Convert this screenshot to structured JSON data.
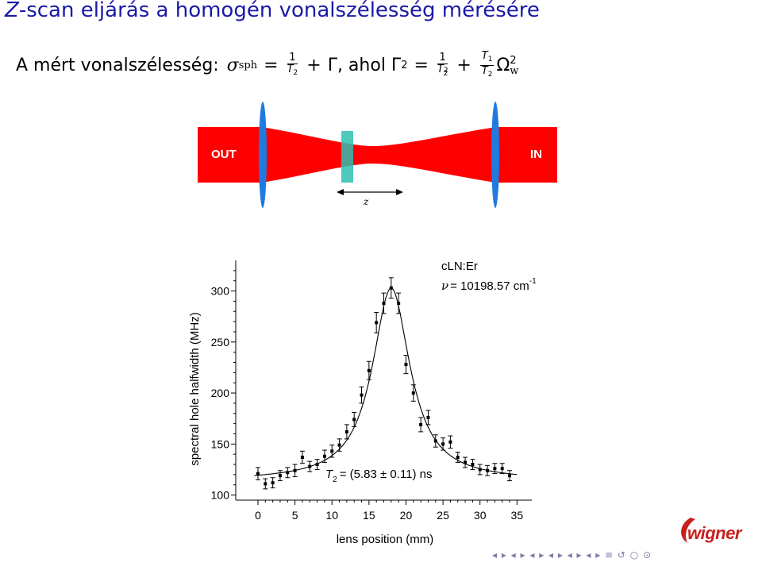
{
  "slide": {
    "title_var": "Z",
    "title_rest": "-scan eljárás a homogén vonalszélesség mérésére",
    "line_prefix": "A mért vonalszélesség:",
    "sigma": "σ",
    "sigma_sub": "sph",
    "eq": "=",
    "plus": "+",
    "gamma_text": "Γ, ahol Γ",
    "sq": "2",
    "one": "1",
    "T": "T",
    "T2_sub": "2",
    "T1_sub": "1",
    "omega": "Ω",
    "omega_sub": "w",
    "nav_symbols": "◂ ▸ ◂ ▸ ◂ ▸ ◂ ▸ ◂ ▸ ◂ ▸ ≡ ↺ ○ ⊙"
  },
  "diagram": {
    "out_label": "OUT",
    "in_label": "IN",
    "z_label": "z",
    "beam_color": "#ff0000",
    "lens_color": "#1f7be0",
    "sample_color": "#2fbfb0"
  },
  "logo": {
    "text": "wigner",
    "color": "#c8201e"
  },
  "chart_data": {
    "type": "scatter",
    "xlabel": "lens position (mm)",
    "ylabel": "spectral hole halfwidth (MHz)",
    "xlim": [
      -3,
      37
    ],
    "ylim": [
      95,
      330
    ],
    "xticks": [
      0,
      5,
      10,
      15,
      20,
      25,
      30,
      35
    ],
    "yticks": [
      100,
      150,
      200,
      250,
      300
    ],
    "annotation_sample": "cLN:Er",
    "annotation_nu_symbol": "ν",
    "annotation_nu_value": "= 10198.57 cm",
    "annotation_nu_exp": "-1",
    "annotation_T2_symbol": "T",
    "annotation_T2_sub": "2",
    "annotation_T2_value": "= (5.83 ± 0.11) ns",
    "points": [
      {
        "x": 0,
        "y": 121,
        "err": 6
      },
      {
        "x": 1,
        "y": 111,
        "err": 5
      },
      {
        "x": 2,
        "y": 112,
        "err": 5
      },
      {
        "x": 3,
        "y": 119,
        "err": 5
      },
      {
        "x": 4,
        "y": 122,
        "err": 5
      },
      {
        "x": 5,
        "y": 124,
        "err": 6
      },
      {
        "x": 6,
        "y": 137,
        "err": 6
      },
      {
        "x": 7,
        "y": 128,
        "err": 5
      },
      {
        "x": 8,
        "y": 130,
        "err": 5
      },
      {
        "x": 9,
        "y": 138,
        "err": 6
      },
      {
        "x": 10,
        "y": 143,
        "err": 6
      },
      {
        "x": 11,
        "y": 149,
        "err": 6
      },
      {
        "x": 12,
        "y": 162,
        "err": 7
      },
      {
        "x": 13,
        "y": 174,
        "err": 7
      },
      {
        "x": 14,
        "y": 198,
        "err": 8
      },
      {
        "x": 15,
        "y": 222,
        "err": 9
      },
      {
        "x": 16,
        "y": 269,
        "err": 10
      },
      {
        "x": 17,
        "y": 288,
        "err": 10
      },
      {
        "x": 18,
        "y": 303,
        "err": 10
      },
      {
        "x": 19,
        "y": 288,
        "err": 10
      },
      {
        "x": 20,
        "y": 228,
        "err": 9
      },
      {
        "x": 21,
        "y": 200,
        "err": 8
      },
      {
        "x": 22,
        "y": 169,
        "err": 7
      },
      {
        "x": 23,
        "y": 176,
        "err": 7
      },
      {
        "x": 24,
        "y": 153,
        "err": 6
      },
      {
        "x": 25,
        "y": 150,
        "err": 6
      },
      {
        "x": 26,
        "y": 152,
        "err": 6
      },
      {
        "x": 27,
        "y": 137,
        "err": 5
      },
      {
        "x": 28,
        "y": 132,
        "err": 5
      },
      {
        "x": 29,
        "y": 130,
        "err": 5
      },
      {
        "x": 30,
        "y": 125,
        "err": 5
      },
      {
        "x": 31,
        "y": 124,
        "err": 5
      },
      {
        "x": 32,
        "y": 126,
        "err": 5
      },
      {
        "x": 33,
        "y": 126,
        "err": 5
      },
      {
        "x": 34,
        "y": 119,
        "err": 5
      }
    ],
    "fit": {
      "type": "lorentzian",
      "x0": 18,
      "peak": 303,
      "baseline": 114,
      "hwhm": 3.1
    }
  }
}
